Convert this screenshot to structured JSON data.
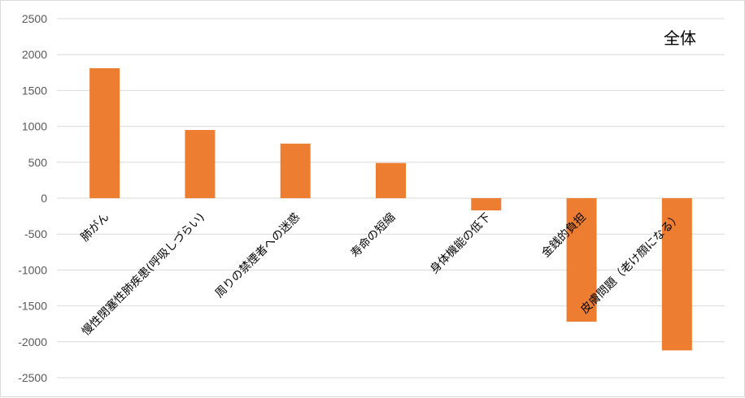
{
  "chart_data": {
    "type": "bar",
    "title": "全体",
    "xlabel": "",
    "ylabel": "",
    "ylim": [
      -2500,
      2500
    ],
    "yticks": [
      2500,
      2000,
      1500,
      1000,
      500,
      0,
      -500,
      -1000,
      -1500,
      -2000,
      -2500
    ],
    "grid": true,
    "bar_color": "#ED7D31",
    "categories": [
      "肺がん",
      "慢性閉塞性肺疾患(呼吸しづらい)",
      "周りの禁煙者への迷惑",
      "寿命の短縮",
      "身体機能の低下",
      "金銭的負担",
      "皮膚問題（老け顔になる）"
    ],
    "values": [
      1810,
      950,
      760,
      490,
      -170,
      -1720,
      -2120
    ]
  }
}
